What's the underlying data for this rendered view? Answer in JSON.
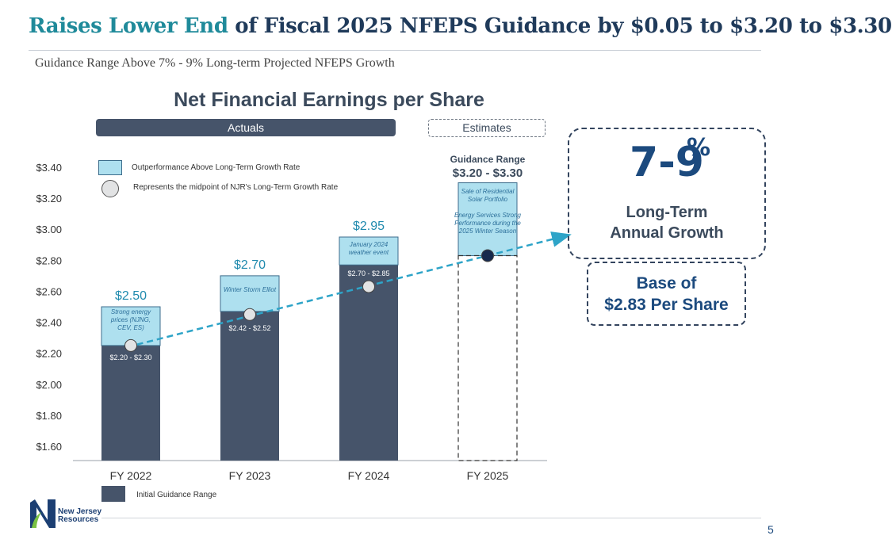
{
  "header": {
    "title_accent": "Raises Lower End",
    "title_rest": " of Fiscal 2025 NFEPS Guidance by $0.05 to $3.20 to $3.30",
    "subtitle": "Guidance Range Above 7% - 9% Long-term Projected NFEPS Growth"
  },
  "chart_data": {
    "type": "bar",
    "title": "Net Financial Earnings per Share",
    "categories": [
      "FY 2022",
      "FY 2023",
      "FY 2024",
      "FY 2025"
    ],
    "ylim": [
      1.6,
      3.4
    ],
    "y_ticks": [
      "$1.60",
      "$1.80",
      "$2.00",
      "$2.20",
      "$2.40",
      "$2.60",
      "$2.80",
      "$3.00",
      "$3.20",
      "$3.40"
    ],
    "series": [
      {
        "name": "Initial Guidance Range",
        "values": [
          2.25,
          2.47,
          2.77,
          2.83
        ]
      },
      {
        "name": "Outperformance Above Long-Term Growth Rate",
        "values": [
          2.5,
          2.7,
          2.95,
          3.3
        ]
      }
    ],
    "midpoints": [
      2.25,
      2.45,
      2.63,
      2.83
    ],
    "top_labels": [
      "$2.50",
      "$2.70",
      "$2.95",
      ""
    ],
    "range_labels": [
      "$2.20 - $2.30",
      "$2.42 - $2.52",
      "$2.70 - $2.85",
      ""
    ],
    "annotations": [
      "Strong energy prices (NJNG, CEV, ES)",
      "Winter Storm Elliot",
      "January 2024 weather event",
      "Sale of Residential Solar Portfolio  Energy Services Strong Performance during the 2025 Winter Season"
    ],
    "fy2025_guidance_title": "Guidance Range",
    "fy2025_guidance_value": "$3.20 - $3.30",
    "period_labels": {
      "actuals": "Actuals",
      "estimates": "Estimates"
    },
    "legend": {
      "outperformance": "Outperformance Above Long-Term Growth Rate",
      "midpoint": "Represents the midpoint of NJR's Long-Term Growth Rate",
      "initial": "Initial Guidance Range"
    },
    "colors": {
      "bar": "#46546a",
      "outperformance": "#aee0ef",
      "outperformance_border": "#3d6d8c",
      "trend": "#2ea4c8",
      "label": "#1f8aae",
      "midpoint_future": "#16294d"
    },
    "legend_placement": "top-left",
    "grid": false
  },
  "callouts": {
    "growth_value": "7-9",
    "growth_unit": "%",
    "growth_label_1": "Long-Term",
    "growth_label_2": "Annual Growth",
    "base_line_1": "Base of",
    "base_line_2": "$2.83 Per Share"
  },
  "footer": {
    "logo_line_1": "New Jersey",
    "logo_line_2": "Resources",
    "page_number": "5"
  }
}
